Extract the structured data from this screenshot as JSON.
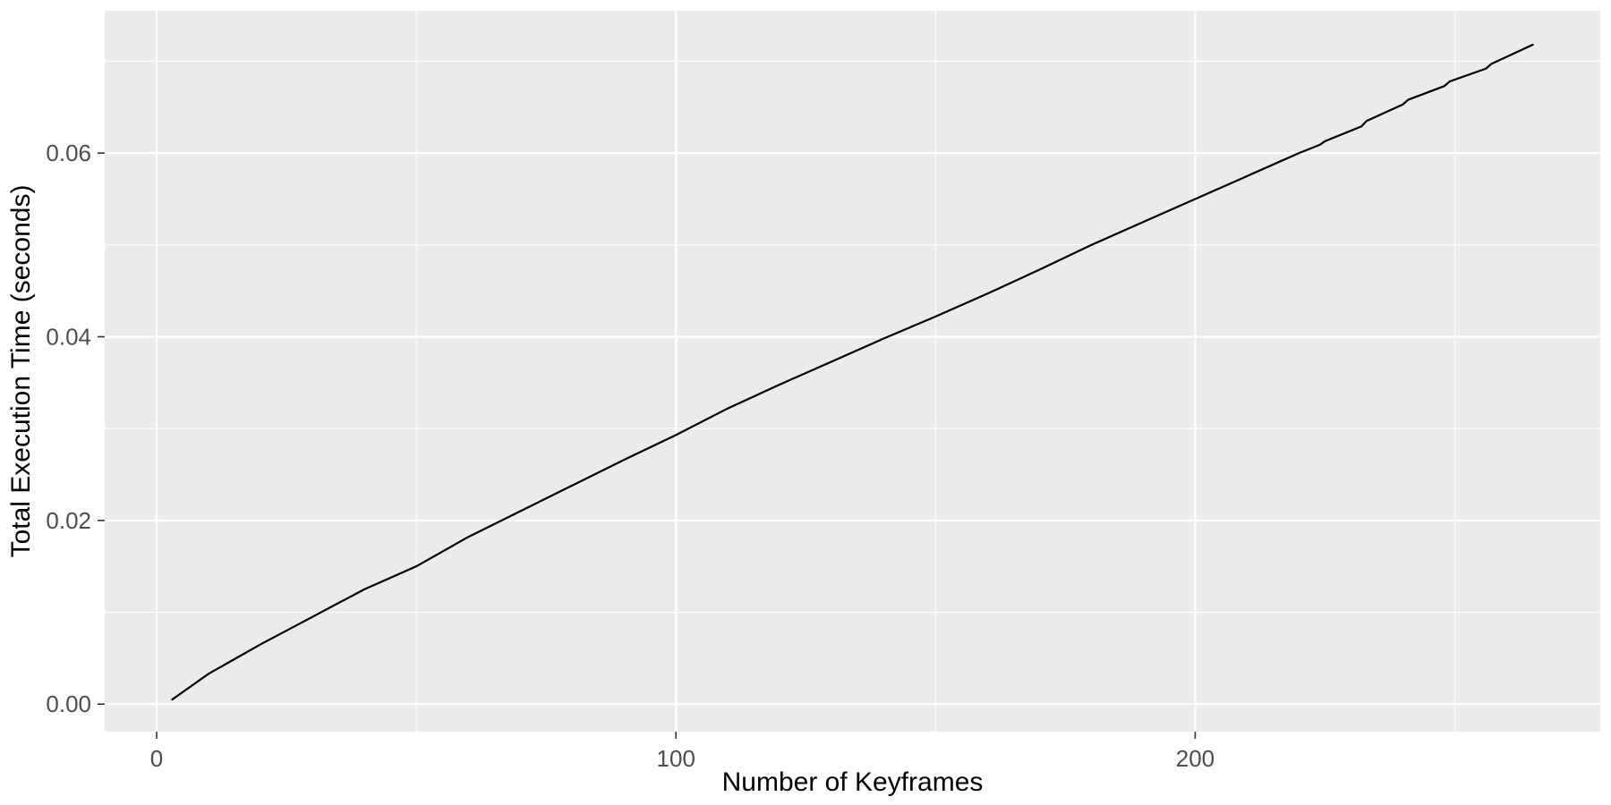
{
  "chart_data": {
    "type": "line",
    "title": "",
    "xlabel": "Number of Keyframes",
    "ylabel": "Total Execution Time (seconds)",
    "xlim": [
      -10,
      278
    ],
    "ylim": [
      -0.003,
      0.0755
    ],
    "x_ticks": [
      0,
      100,
      200
    ],
    "x_tick_labels": [
      "0",
      "100",
      "200"
    ],
    "y_ticks": [
      0.0,
      0.02,
      0.04,
      0.06
    ],
    "y_tick_labels": [
      "0.00",
      "0.02",
      "0.04",
      "0.06"
    ],
    "x_minor_ticks": [
      50,
      150,
      250
    ],
    "y_minor_ticks": [
      0.01,
      0.03,
      0.05,
      0.07
    ],
    "grid": true,
    "legend": "none",
    "colors": {
      "panel": "#EBEBEB",
      "grid": "#FFFFFF",
      "line": "#000000",
      "tick_text": "#4D4D4D",
      "axis_title": "#000000"
    },
    "series": [
      {
        "x": [
          3,
          10,
          20,
          30,
          40,
          50,
          60,
          70,
          80,
          90,
          100,
          110,
          120,
          130,
          140,
          150,
          160,
          170,
          180,
          190,
          200,
          210,
          220,
          224,
          225,
          232,
          233,
          240,
          241,
          248,
          249,
          256,
          257,
          265
        ],
        "y": [
          0.0005,
          0.0033,
          0.0065,
          0.0095,
          0.0125,
          0.015,
          0.0182,
          0.021,
          0.0238,
          0.0266,
          0.0293,
          0.0322,
          0.0348,
          0.0373,
          0.0398,
          0.0422,
          0.0447,
          0.0473,
          0.05,
          0.0525,
          0.055,
          0.0575,
          0.06,
          0.0609,
          0.0613,
          0.0629,
          0.0635,
          0.0653,
          0.0658,
          0.0673,
          0.0678,
          0.0692,
          0.0697,
          0.0718
        ]
      }
    ]
  }
}
